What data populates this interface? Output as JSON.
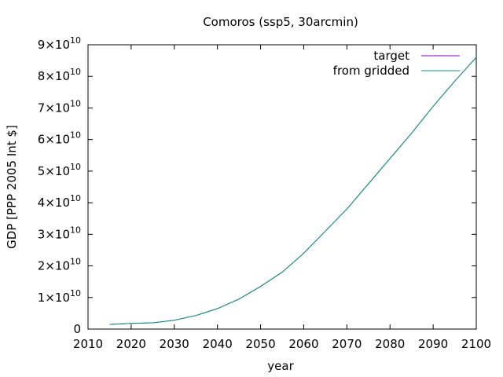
{
  "chart_data": {
    "type": "line",
    "title": "Comoros (ssp5, 30arcmin)",
    "xlabel": "year",
    "ylabel": "GDP [PPP 2005 Int $]",
    "xlim": [
      2010,
      2100
    ],
    "ylim": [
      0,
      90000000000
    ],
    "x_ticks": [
      {
        "value": 2010,
        "label": "2010"
      },
      {
        "value": 2020,
        "label": "2020"
      },
      {
        "value": 2030,
        "label": "2030"
      },
      {
        "value": 2040,
        "label": "2040"
      },
      {
        "value": 2050,
        "label": "2050"
      },
      {
        "value": 2060,
        "label": "2060"
      },
      {
        "value": 2070,
        "label": "2070"
      },
      {
        "value": 2080,
        "label": "2080"
      },
      {
        "value": 2090,
        "label": "2090"
      },
      {
        "value": 2100,
        "label": "2100"
      }
    ],
    "y_ticks": [
      {
        "value": 0,
        "mantissa": "0",
        "base": "",
        "exp": ""
      },
      {
        "value": 10000000000,
        "mantissa": "1",
        "base": "×10",
        "exp": "10"
      },
      {
        "value": 20000000000,
        "mantissa": "2",
        "base": "×10",
        "exp": "10"
      },
      {
        "value": 30000000000,
        "mantissa": "3",
        "base": "×10",
        "exp": "10"
      },
      {
        "value": 40000000000,
        "mantissa": "4",
        "base": "×10",
        "exp": "10"
      },
      {
        "value": 50000000000,
        "mantissa": "5",
        "base": "×10",
        "exp": "10"
      },
      {
        "value": 60000000000,
        "mantissa": "6",
        "base": "×10",
        "exp": "10"
      },
      {
        "value": 70000000000,
        "mantissa": "7",
        "base": "×10",
        "exp": "10"
      },
      {
        "value": 80000000000,
        "mantissa": "8",
        "base": "×10",
        "exp": "10"
      },
      {
        "value": 90000000000,
        "mantissa": "9",
        "base": "×10",
        "exp": "10"
      }
    ],
    "legend_position": "top-right",
    "grid": false,
    "series": [
      {
        "name": "target",
        "color": "#9400d3",
        "x": [
          2015,
          2020,
          2025,
          2030,
          2035,
          2040,
          2045,
          2050,
          2055,
          2060,
          2065,
          2070,
          2075,
          2080,
          2085,
          2090,
          2095,
          2100
        ],
        "y": [
          1500000000,
          1800000000,
          2000000000,
          2800000000,
          4300000000,
          6500000000,
          9500000000,
          13500000000,
          18000000000,
          24000000000,
          31000000000,
          38000000000,
          46000000000,
          54000000000,
          62000000000,
          70500000000,
          78500000000,
          86000000000
        ]
      },
      {
        "name": "from gridded",
        "color": "#009e73",
        "x": [
          2015,
          2020,
          2025,
          2030,
          2035,
          2040,
          2045,
          2050,
          2055,
          2060,
          2065,
          2070,
          2075,
          2080,
          2085,
          2090,
          2095,
          2100
        ],
        "y": [
          1500000000,
          1800000000,
          2000000000,
          2800000000,
          4300000000,
          6500000000,
          9500000000,
          13500000000,
          18000000000,
          24000000000,
          31000000000,
          38000000000,
          46000000000,
          54000000000,
          62000000000,
          70500000000,
          78500000000,
          86000000000
        ]
      }
    ]
  }
}
